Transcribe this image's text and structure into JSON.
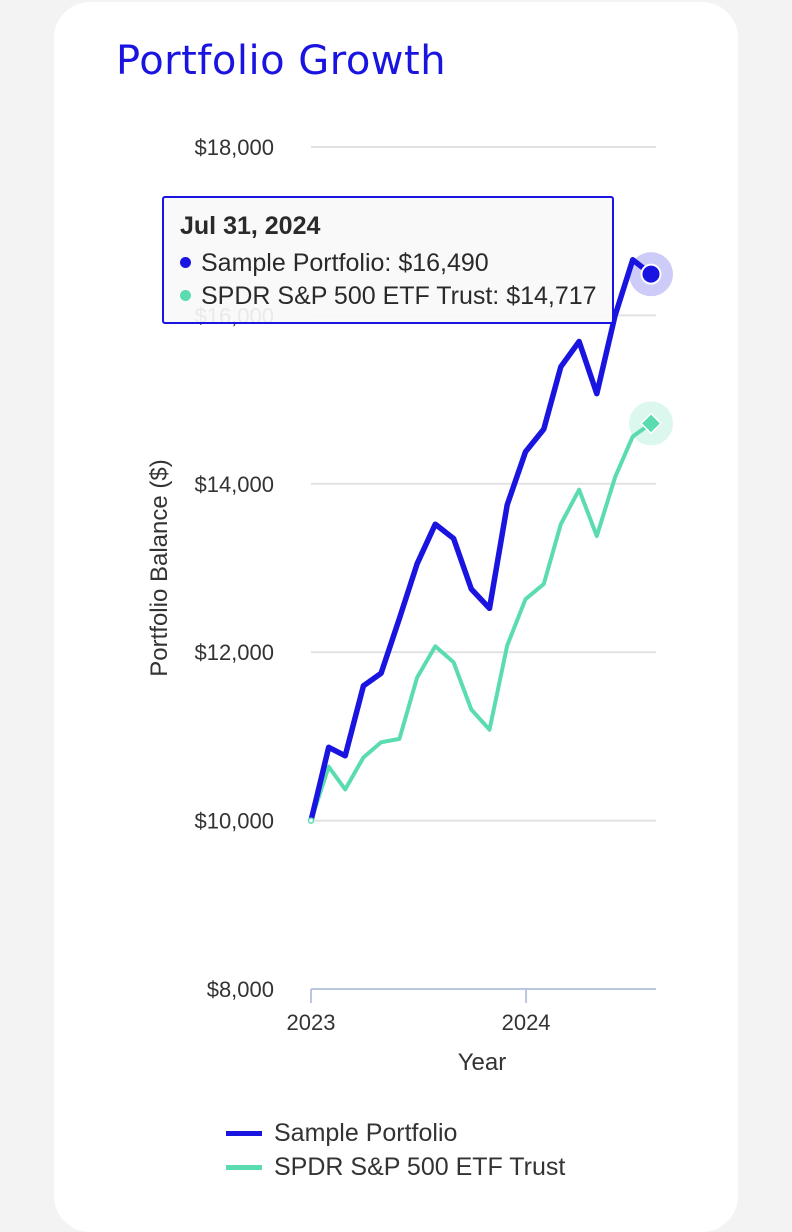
{
  "title": "Portfolio Growth",
  "tooltip": {
    "date": "Jul 31, 2024",
    "rows": [
      {
        "label": "Sample Portfolio: $16,490"
      },
      {
        "label": "SPDR S&P 500 ETF Trust: $14,717"
      }
    ]
  },
  "colors": {
    "portfolio": "#1a14e0",
    "spdr": "#5bdcb0",
    "grid": "#e2e2e6",
    "axis": "#b8c7de",
    "text": "#333333"
  },
  "chart_data": {
    "type": "line",
    "title": "Portfolio Growth",
    "xlabel": "Year",
    "ylabel": "Portfolio Balance ($)",
    "ylim": [
      8000,
      18000
    ],
    "yticks": [
      8000,
      10000,
      12000,
      14000,
      16000,
      18000
    ],
    "ytick_labels": [
      "$8,000",
      "$10,000",
      "$12,000",
      "$14,000",
      "$16,000",
      "$18,000"
    ],
    "xlim": [
      "2023-01-01",
      "2024-08-01"
    ],
    "xticks": [
      "2023-01-01",
      "2024-01-01"
    ],
    "xtick_labels": [
      "2023",
      "2024"
    ],
    "grid": true,
    "legend": "bottom",
    "x": [
      "2023-01-01",
      "2023-01-31",
      "2023-02-28",
      "2023-03-31",
      "2023-04-30",
      "2023-05-31",
      "2023-06-30",
      "2023-07-31",
      "2023-08-31",
      "2023-09-30",
      "2023-10-31",
      "2023-11-30",
      "2023-12-31",
      "2024-01-31",
      "2024-02-29",
      "2024-03-31",
      "2024-04-30",
      "2024-05-31",
      "2024-06-30",
      "2024-07-31"
    ],
    "series": [
      {
        "name": "Sample Portfolio",
        "values": [
          10000,
          10870,
          10770,
          11600,
          11750,
          12400,
          13050,
          13520,
          13350,
          12750,
          12520,
          13750,
          14380,
          14650,
          15390,
          15690,
          15070,
          16000,
          16660,
          16490
        ]
      },
      {
        "name": "SPDR S&P 500 ETF Trust",
        "values": [
          10000,
          10640,
          10370,
          10750,
          10930,
          10970,
          11700,
          12070,
          11880,
          11320,
          11080,
          12080,
          12630,
          12810,
          13520,
          13930,
          13380,
          14080,
          14560,
          14717
        ]
      }
    ]
  }
}
